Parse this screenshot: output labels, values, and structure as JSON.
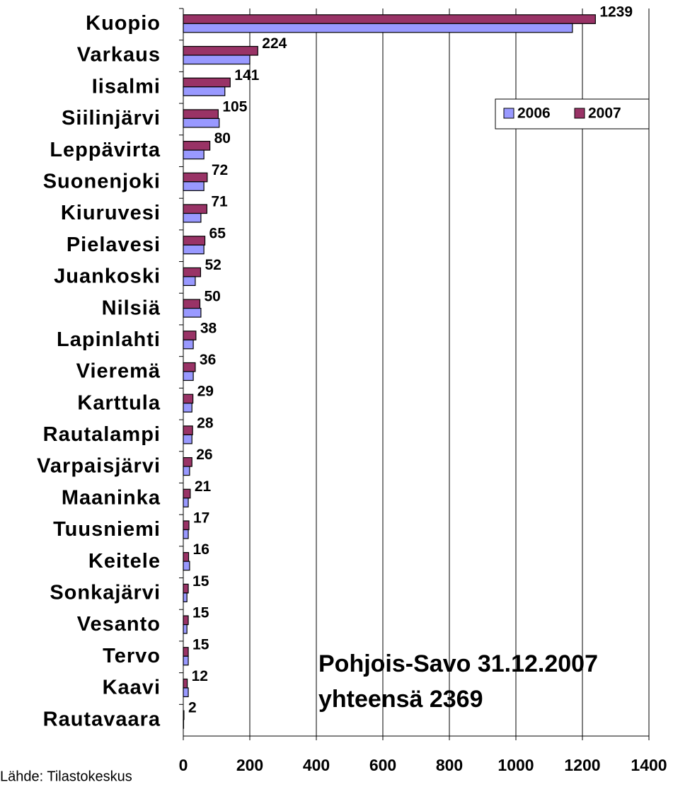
{
  "chart_data": {
    "type": "hbar",
    "categories": [
      "Kuopio",
      "Varkaus",
      "Iisalmi",
      "Siilinjärvi",
      "Leppävirta",
      "Suonenjoki",
      "Kiuruvesi",
      "Pielavesi",
      "Juankoski",
      "Nilsiä",
      "Lapinlahti",
      "Vieremä",
      "Karttula",
      "Rautalampi",
      "Varpaisjärvi",
      "Maaninka",
      "Tuusniemi",
      "Keitele",
      "Sonkajärvi",
      "Vesanto",
      "Tervo",
      "Kaavi",
      "Rautavaara"
    ],
    "series": [
      {
        "name": "2006",
        "color": "#9999ff",
        "values": [
          1170,
          200,
          125,
          108,
          62,
          62,
          53,
          62,
          36,
          53,
          30,
          30,
          26,
          26,
          19,
          15,
          15,
          19,
          11,
          11,
          15,
          15,
          1
        ]
      },
      {
        "name": "2007",
        "color": "#993366",
        "values": [
          1239,
          224,
          141,
          105,
          80,
          72,
          71,
          65,
          52,
          50,
          38,
          36,
          29,
          28,
          26,
          21,
          17,
          16,
          15,
          15,
          15,
          12,
          2
        ]
      }
    ],
    "xlim": [
      0,
      1400
    ],
    "xticks": [
      0,
      200,
      400,
      600,
      800,
      1000,
      1200,
      1400
    ],
    "grid": true,
    "legend": "upper right",
    "annotations": [
      "Pohjois-Savo 31.12.2007",
      "yhteensä 2369"
    ],
    "source": "Lähde: Tilastokeskus"
  }
}
